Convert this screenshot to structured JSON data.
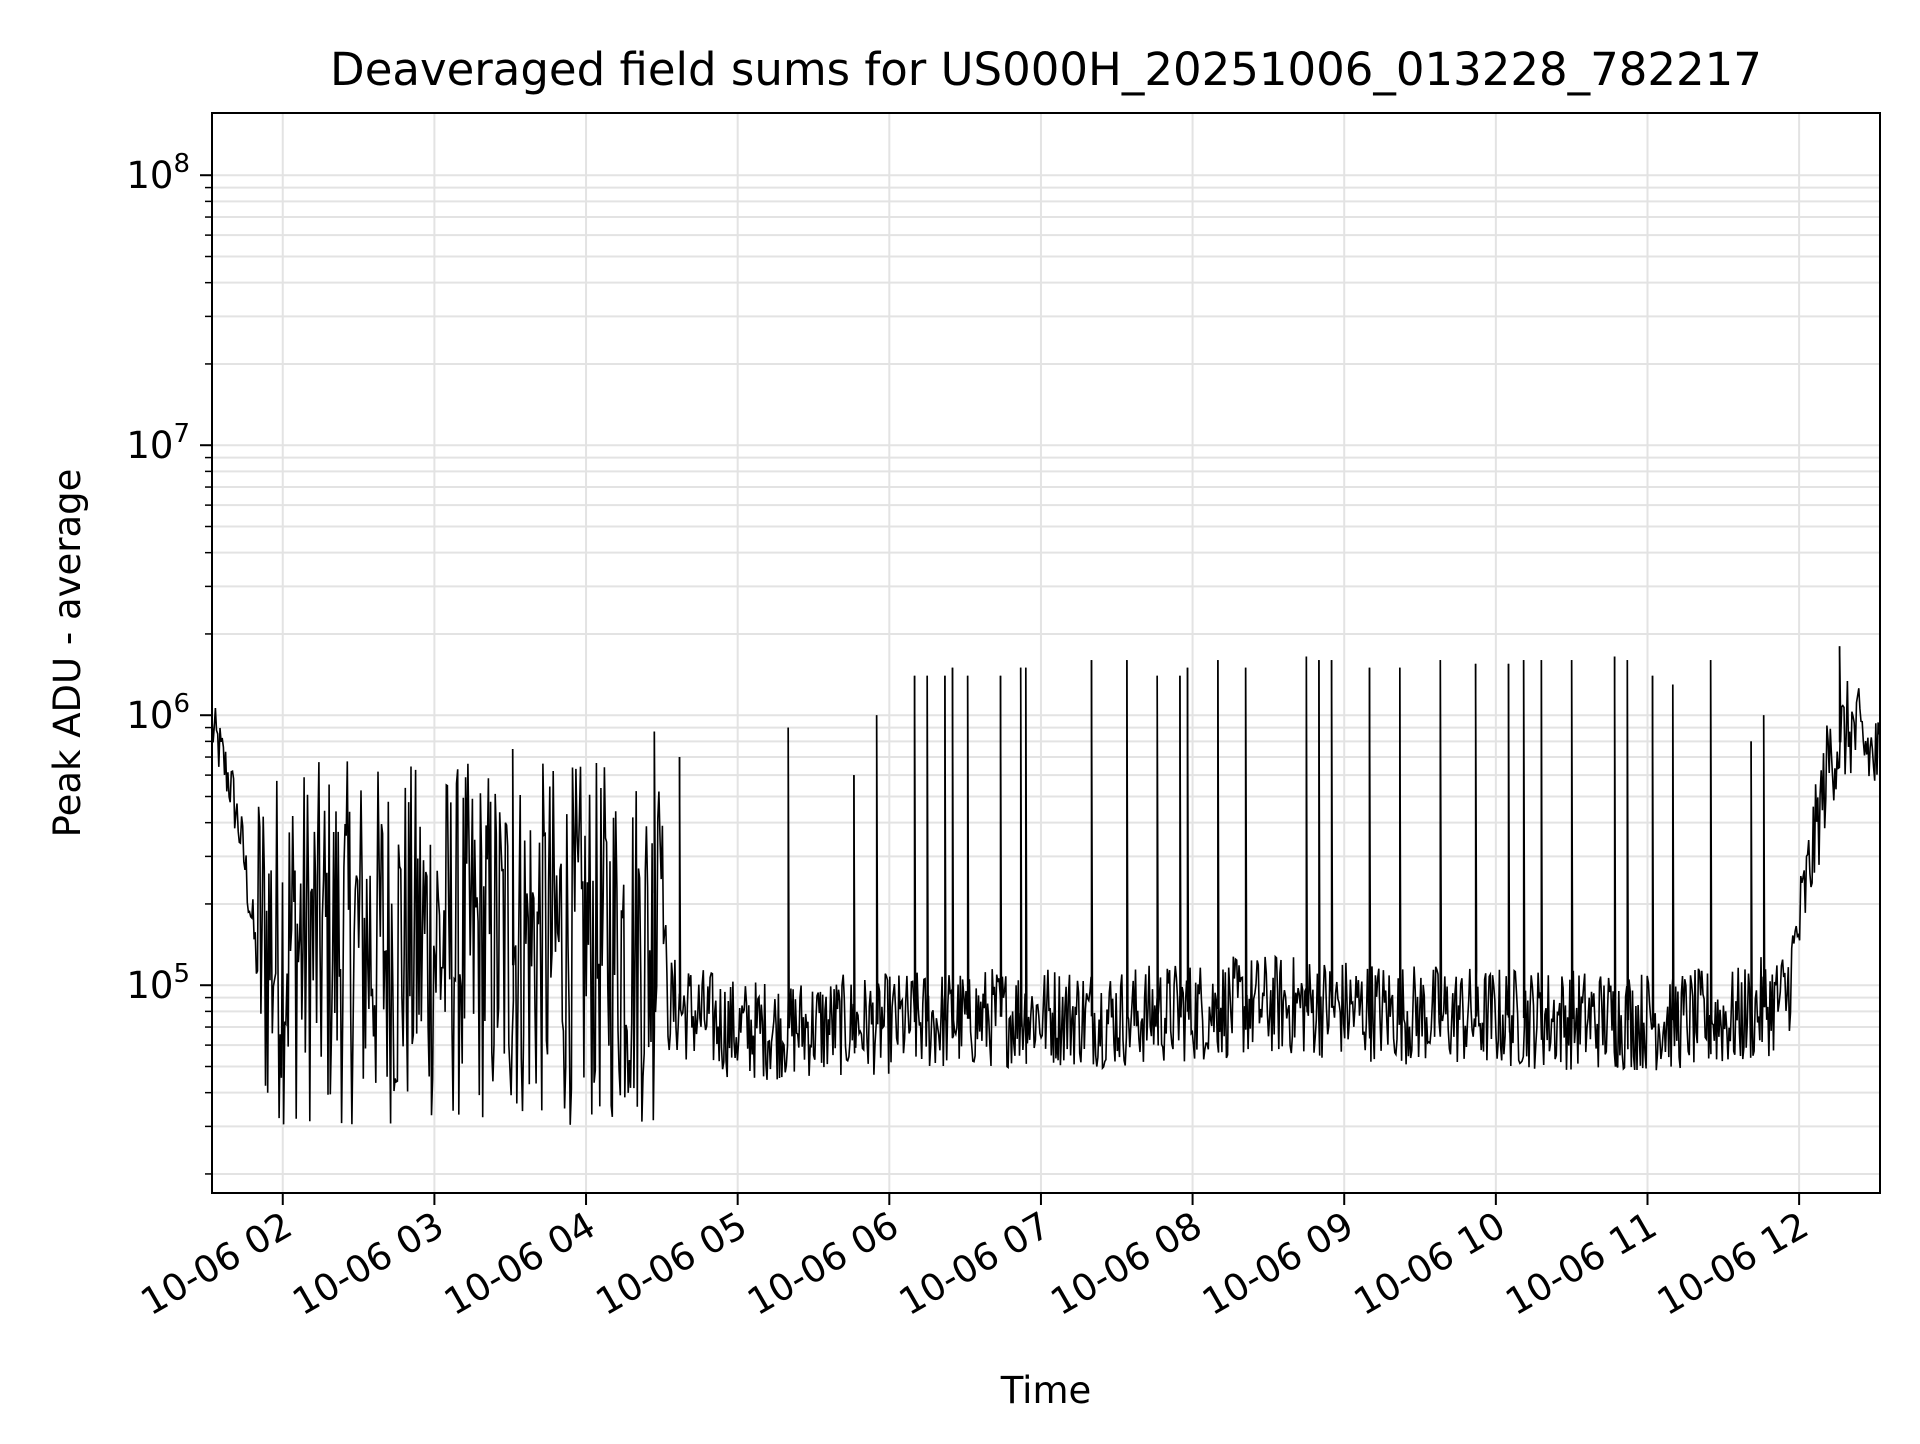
{
  "chart_data": {
    "type": "line",
    "title": "Deaveraged field sums for US000H_20251006_013228_782217",
    "xlabel": "Time",
    "ylabel": "Peak ADU - average",
    "yscale": "log",
    "grid": true,
    "xlim": [
      "2025-10-06 01:32",
      "2025-10-06 12:32"
    ],
    "ylim": [
      17000,
      170000000
    ],
    "x_ticks": [
      {
        "value": "2025-10-06 02:00",
        "label": "10-06 02"
      },
      {
        "value": "2025-10-06 03:00",
        "label": "10-06 03"
      },
      {
        "value": "2025-10-06 04:00",
        "label": "10-06 04"
      },
      {
        "value": "2025-10-06 05:00",
        "label": "10-06 05"
      },
      {
        "value": "2025-10-06 06:00",
        "label": "10-06 06"
      },
      {
        "value": "2025-10-06 07:00",
        "label": "10-06 07"
      },
      {
        "value": "2025-10-06 08:00",
        "label": "10-06 08"
      },
      {
        "value": "2025-10-06 09:00",
        "label": "10-06 09"
      },
      {
        "value": "2025-10-06 10:00",
        "label": "10-06 10"
      },
      {
        "value": "2025-10-06 11:00",
        "label": "10-06 11"
      },
      {
        "value": "2025-10-06 12:00",
        "label": "10-06 12"
      }
    ],
    "y_ticks": [
      {
        "value": 100000,
        "base": "10",
        "exp": "5"
      },
      {
        "value": 1000000,
        "base": "10",
        "exp": "6"
      },
      {
        "value": 10000000,
        "base": "10",
        "exp": "7"
      },
      {
        "value": 100000000,
        "base": "10",
        "exp": "8"
      }
    ],
    "series": [
      {
        "color": "#000000",
        "points": [
          [
            "2025-10-06 01:32",
            900000
          ],
          [
            "2025-10-06 01:36",
            700000
          ],
          [
            "2025-10-06 01:40",
            520000
          ],
          [
            "2025-10-06 01:44",
            330000
          ],
          [
            "2025-10-06 01:48",
            170000
          ],
          [
            "2025-10-06 01:52",
            80000
          ],
          [
            "2025-10-06 02:00",
            200000
          ],
          [
            "2025-10-06 02:15",
            300000
          ],
          [
            "2025-10-06 02:30",
            250000
          ],
          [
            "2025-10-06 02:45",
            180000
          ],
          [
            "2025-10-06 03:00",
            160000
          ],
          [
            "2025-10-06 03:20",
            130000
          ],
          [
            "2025-10-06 03:40",
            110000
          ],
          [
            "2025-10-06 04:00",
            90000
          ],
          [
            "2025-10-06 04:25",
            80000
          ],
          [
            "2025-10-06 04:29",
            600000
          ],
          [
            "2025-10-06 04:32",
            85000
          ],
          [
            "2025-10-06 05:00",
            68000
          ],
          [
            "2025-10-06 05:30",
            70000
          ],
          [
            "2025-10-06 06:00",
            72000
          ],
          [
            "2025-10-06 06:30",
            75000
          ],
          [
            "2025-10-06 07:00",
            78000
          ],
          [
            "2025-10-06 07:30",
            76000
          ],
          [
            "2025-10-06 08:00",
            80000
          ],
          [
            "2025-10-06 08:30",
            85000
          ],
          [
            "2025-10-06 09:00",
            82000
          ],
          [
            "2025-10-06 09:30",
            78000
          ],
          [
            "2025-10-06 10:00",
            76000
          ],
          [
            "2025-10-06 10:30",
            75000
          ],
          [
            "2025-10-06 11:00",
            74000
          ],
          [
            "2025-10-06 11:35",
            75000
          ],
          [
            "2025-10-06 11:55",
            90000
          ],
          [
            "2025-10-06 12:05",
            300000
          ],
          [
            "2025-10-06 12:12",
            700000
          ],
          [
            "2025-10-06 12:20",
            900000
          ],
          [
            "2025-10-06 12:32",
            650000
          ]
        ],
        "spikes": [
          [
            "2025-10-06 03:31",
            750000
          ],
          [
            "2025-10-06 04:27",
            870000
          ],
          [
            "2025-10-06 04:37",
            700000
          ],
          [
            "2025-10-06 05:20",
            900000
          ],
          [
            "2025-10-06 05:46",
            600000
          ],
          [
            "2025-10-06 05:55",
            1000000
          ],
          [
            "2025-10-06 06:10",
            1400000
          ],
          [
            "2025-10-06 06:15",
            1400000
          ],
          [
            "2025-10-06 06:22",
            1400000
          ],
          [
            "2025-10-06 06:25",
            1500000
          ],
          [
            "2025-10-06 06:31",
            1400000
          ],
          [
            "2025-10-06 06:44",
            1400000
          ],
          [
            "2025-10-06 06:52",
            1500000
          ],
          [
            "2025-10-06 06:54",
            1500000
          ],
          [
            "2025-10-06 07:20",
            1600000
          ],
          [
            "2025-10-06 07:34",
            1600000
          ],
          [
            "2025-10-06 07:46",
            1400000
          ],
          [
            "2025-10-06 07:55",
            1400000
          ],
          [
            "2025-10-06 07:58",
            1500000
          ],
          [
            "2025-10-06 08:10",
            1600000
          ],
          [
            "2025-10-06 08:21",
            1500000
          ],
          [
            "2025-10-06 08:45",
            1650000
          ],
          [
            "2025-10-06 08:50",
            1600000
          ],
          [
            "2025-10-06 08:55",
            1600000
          ],
          [
            "2025-10-06 09:10",
            1500000
          ],
          [
            "2025-10-06 09:22",
            1500000
          ],
          [
            "2025-10-06 09:38",
            1600000
          ],
          [
            "2025-10-06 09:52",
            1550000
          ],
          [
            "2025-10-06 10:05",
            1550000
          ],
          [
            "2025-10-06 10:11",
            1600000
          ],
          [
            "2025-10-06 10:18",
            1600000
          ],
          [
            "2025-10-06 10:30",
            1600000
          ],
          [
            "2025-10-06 10:47",
            1650000
          ],
          [
            "2025-10-06 10:52",
            1600000
          ],
          [
            "2025-10-06 11:02",
            1400000
          ],
          [
            "2025-10-06 11:10",
            1300000
          ],
          [
            "2025-10-06 11:25",
            1600000
          ],
          [
            "2025-10-06 11:41",
            800000
          ],
          [
            "2025-10-06 11:46",
            1000000
          ],
          [
            "2025-10-06 12:16",
            1800000
          ]
        ]
      }
    ]
  }
}
